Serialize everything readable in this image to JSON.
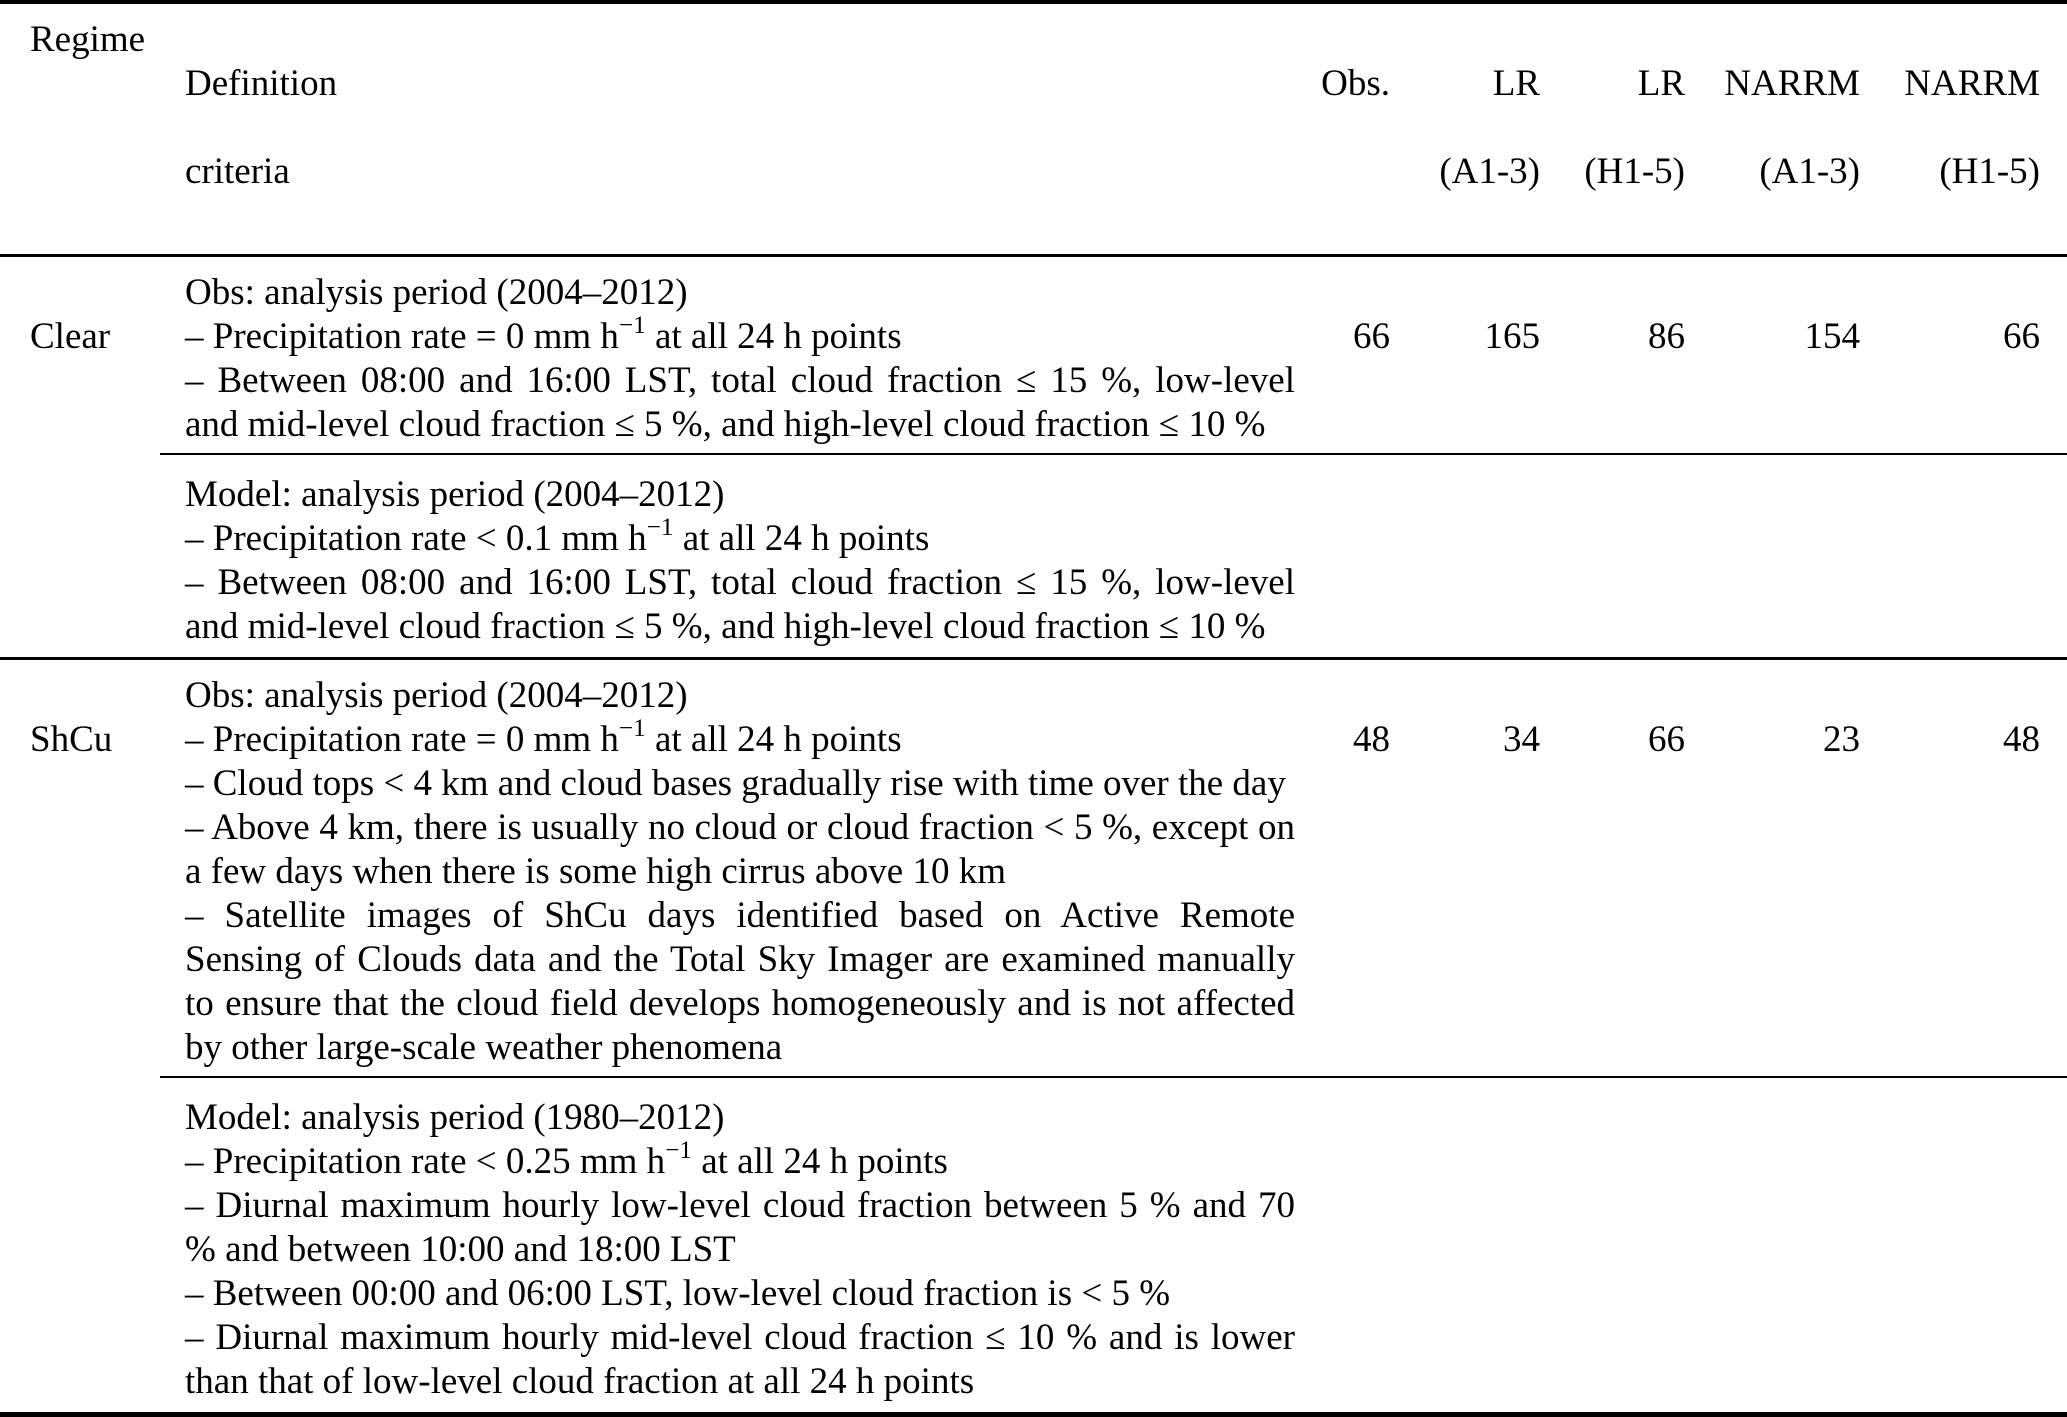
{
  "header": {
    "col_regime": "Regime",
    "col_definition": [
      "Definition",
      "criteria"
    ],
    "col_obs": [
      "Obs.",
      ""
    ],
    "col_lr_a13": [
      "LR",
      "(A1-3)"
    ],
    "col_lr_h15": [
      "LR",
      "(H1-5)"
    ],
    "col_narrm_a13": [
      "NARRM",
      "(A1-3)"
    ],
    "col_narrm_h15": [
      "NARRM",
      "(H1-5)"
    ]
  },
  "rows": [
    {
      "regime": "Clear",
      "obs_criteria": [
        [
          {
            "t": "Obs: analysis period (2004–2012)"
          }
        ],
        [
          {
            "t": "– Precipitation rate = 0 mm h"
          },
          {
            "sup": "−1"
          },
          {
            "t": " at all 24 h points"
          }
        ],
        [
          {
            "t": "– Between 08:00 and 16:00 LST, total cloud fraction ≤ 15 %, low-level and mid-level cloud fraction ≤ 5 %, and high-level cloud fraction ≤ 10 %"
          }
        ]
      ],
      "model_criteria": [
        [
          {
            "t": "Model: analysis period (2004–2012)"
          }
        ],
        [
          {
            "t": "– Precipitation rate < 0.1 mm h"
          },
          {
            "sup": "−1"
          },
          {
            "t": " at all 24 h points"
          }
        ],
        [
          {
            "t": "– Between 08:00 and 16:00 LST, total cloud fraction ≤ 15 %, low-level and mid-level cloud fraction ≤ 5 %, and high-level cloud fraction ≤ 10 %"
          }
        ]
      ],
      "values": [
        "66",
        "165",
        "86",
        "154",
        "66"
      ]
    },
    {
      "regime": "ShCu",
      "obs_criteria": [
        [
          {
            "t": "Obs: analysis period (2004–2012)"
          }
        ],
        [
          {
            "t": "– Precipitation rate = 0 mm h"
          },
          {
            "sup": "−1"
          },
          {
            "t": " at all 24 h points"
          }
        ],
        [
          {
            "t": "– Cloud tops < 4 km and cloud bases gradually rise with time over the day"
          }
        ],
        [
          {
            "t": "– Above 4 km, there is usually no cloud or cloud fraction < 5 %, except on a few days when there is some high cirrus above 10 km"
          }
        ],
        [
          {
            "t": "– Satellite images of ShCu days identified based on Active Remote Sensing of Clouds data and the Total Sky Imager are examined manually to ensure that the cloud field develops homogeneously and is not affected by other large-scale weather phenomena"
          }
        ]
      ],
      "model_criteria": [
        [
          {
            "t": "Model: analysis period (1980–2012)"
          }
        ],
        [
          {
            "t": "– Precipitation rate < 0.25 mm h"
          },
          {
            "sup": "−1"
          },
          {
            "t": " at all 24 h points"
          }
        ],
        [
          {
            "t": "– Diurnal maximum hourly low-level cloud fraction between 5 % and 70 % and between 10:00 and 18:00 LST"
          }
        ],
        [
          {
            "t": "– Between 00:00 and 06:00 LST, low-level cloud fraction is < 5 %"
          }
        ],
        [
          {
            "t": "– Diurnal maximum hourly mid-level cloud fraction ≤ 10 % and is lower than that of low-level cloud fraction at all 24 h points"
          }
        ]
      ],
      "values": [
        "48",
        "34",
        "66",
        "23",
        "48"
      ]
    }
  ]
}
